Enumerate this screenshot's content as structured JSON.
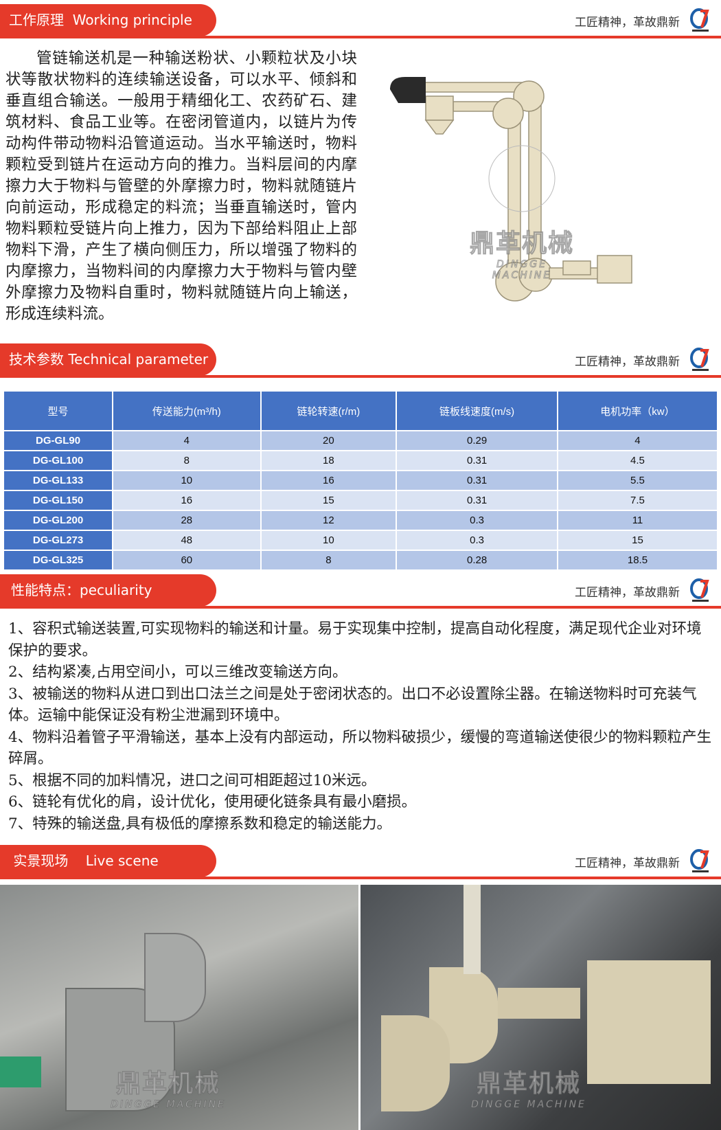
{
  "slogan": "工匠精神，革故鼎新",
  "colors": {
    "accent": "#e53a2a",
    "table_header": "#4472c4",
    "row_odd": "#b4c6e7",
    "row_even": "#dae3f3"
  },
  "watermark": {
    "cn": "鼎革机械",
    "en": "DINGGE MACHINE"
  },
  "sections": {
    "working": {
      "title": "工作原理  Working principle",
      "text": "管链输送机是一种输送粉状、小颗粒状及小块状等散状物料的连续输送设备，可以水平、倾斜和垂直组合输送。一般用于精细化工、农药矿石、建筑材料、食品工业等。在密闭管道内，以链片为传动构件带动物料沿管道运动。当水平输送时，物料颗粒受到链片在运动方向的推力。当料层间的内摩擦力大于物料与管壁的外摩擦力时，物料就随链片向前运动，形成稳定的料流；当垂直输送时，管内物料颗粒受链片向上推力，因为下部给料阻止上部物料下滑，产生了横向侧压力，所以增强了物料的内摩擦力，当物料间的内摩擦力大于物料与管内壁外摩擦力及物料自重时，物料就随链片向上输送，形成连续料流。"
    },
    "technical": {
      "title": "技术参数 Technical parameter"
    },
    "peculiarity": {
      "title": "性能特点：peculiarity"
    },
    "live": {
      "title": " 实景现场    Live scene"
    }
  },
  "table": {
    "headers": [
      "型号",
      "传送能力(m³/h)",
      "链轮转速(r/m)",
      "链板线速度(m/s)",
      "电机功率（kw）"
    ],
    "rows": [
      [
        "DG-GL90",
        "4",
        "20",
        "0.29",
        "4"
      ],
      [
        "DG-GL100",
        "8",
        "18",
        "0.31",
        "4.5"
      ],
      [
        "DG-GL133",
        "10",
        "16",
        "0.31",
        "5.5"
      ],
      [
        "DG-GL150",
        "16",
        "15",
        "0.31",
        "7.5"
      ],
      [
        "DG-GL200",
        "28",
        "12",
        "0.3",
        "11"
      ],
      [
        "DG-GL273",
        "48",
        "10",
        "0.3",
        "15"
      ],
      [
        "DG-GL325",
        "60",
        "8",
        "0.28",
        "18.5"
      ]
    ]
  },
  "features": [
    "1、容积式输送装置,可实现物料的输送和计量。易于实现集中控制，提高自动化程度，满足现代企业对环境保护的要求。",
    "2、结构紧凑,占用空间小，可以三维改变输送方向。",
    "3、被输送的物料从进口到出口法兰之间是处于密闭状态的。出口不必设置除尘器。在输送物料时可充装气体。运输中能保证没有粉尘泄漏到环境中。",
    "4、物料沿着管子平滑输送，基本上没有内部运动，所以物料破损少，缓慢的弯道输送使很少的物料颗粒产生碎屑。",
    "5、根据不同的加料情况，进口之间可相距超过10米远。",
    "6、链轮有优化的肩，设计优化，使用硬化链条具有最小磨损。",
    "7、特殊的输送盘,具有极低的摩擦系数和稳定的输送能力。"
  ]
}
